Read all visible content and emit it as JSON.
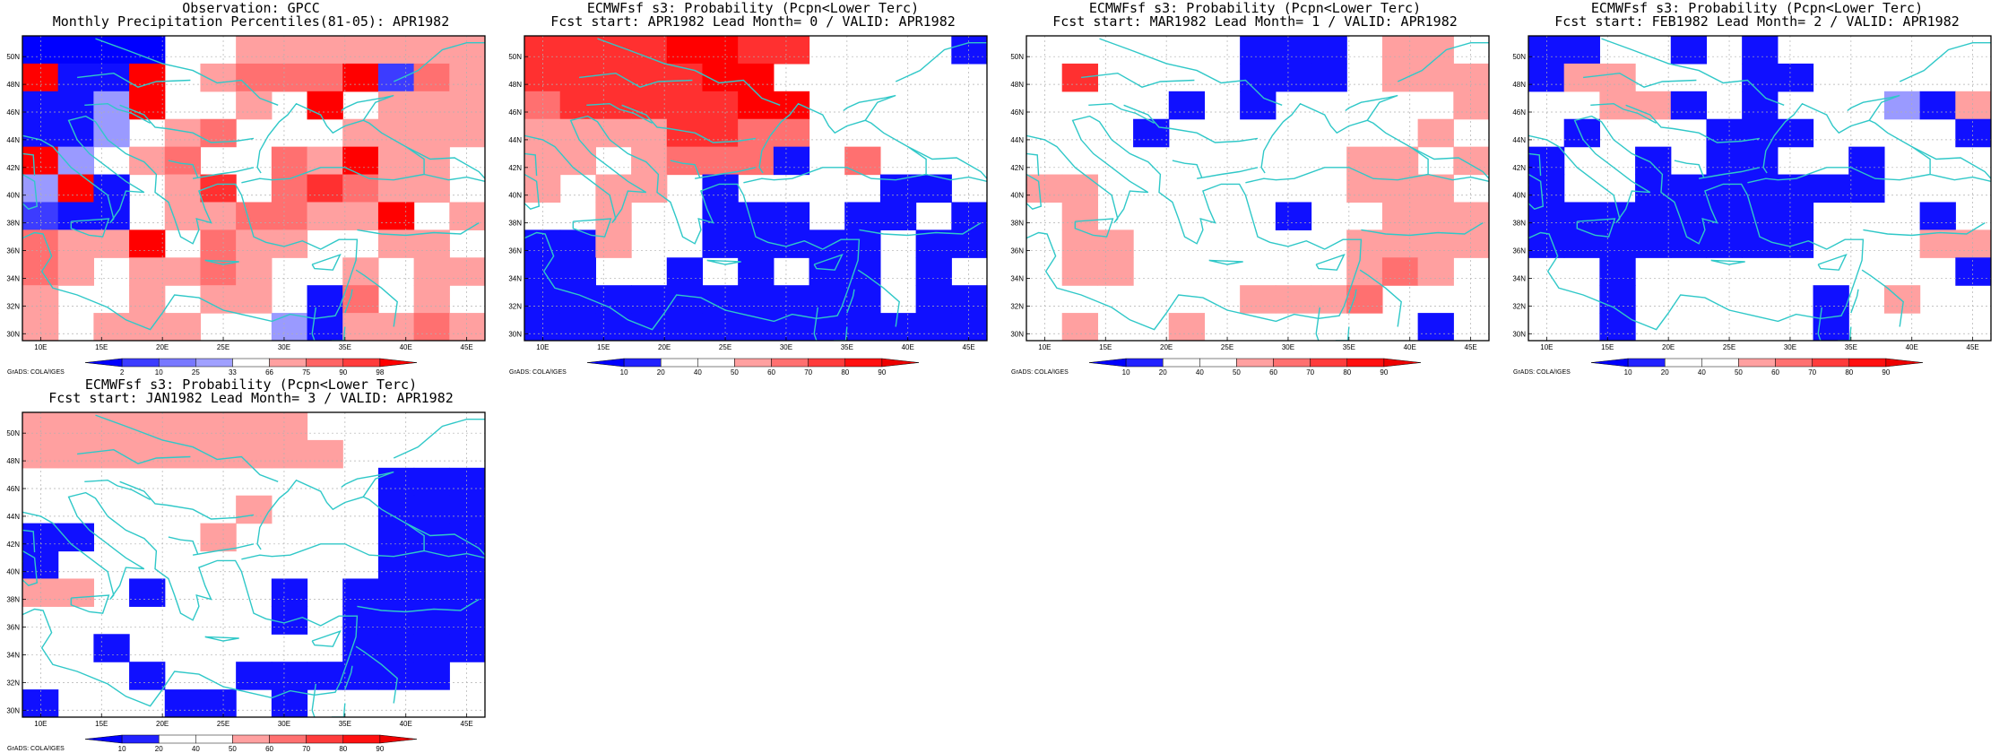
{
  "panels": [
    {
      "title1": "Observation: GPCC",
      "title2": "Monthly Precipitation Percentiles(81-05): APR1982",
      "legend_key": "obs",
      "credit": "GrADS: COLA/IGES",
      "grid_rows": [
        "2222..6666666",
        "9aa9.67779576",
        "aab9..6.9.666",
        "aab.67...6666",
        "9b.67..76966.",
        "b9a.68.78766.",
        "5aa.6677669.6",
        "7669.766..66.",
        "76.6676..6.66",
        "6..6.66.a7.6.",
        "6.666..ba6676"
      ]
    },
    {
      "title1": "ECMWFsf s3: Probability (Pcpn<Lower Terc)",
      "title2": "Fcst start: APR1982  Lead Month= 0 / VALID: APR1982",
      "legend_key": "prob",
      "credit": "GrADS: COLA/IGES",
      "grid_rows": [
        "88889988....a",
        "8888899.....",
        "78888899.....",
        "66668877......",
        "66.6777a.7.",
        "6.66.a....aa",
        "..6..aaa.aa.a",
        "aa6..aaaaa.aa",
        "aa..a.a.aa.a",
        "aaaaaaaaaa.aa",
        "aaaaaaaaaaaaa"
      ]
    },
    {
      "title1": "ECMWFsf s3: Probability (Pcpn<Lower Terc)",
      "title2": "Fcst start: MAR1982  Lead Month= 1 / VALID: APR1982",
      "legend_key": "prob",
      "credit": "GrADS: COLA/IGES",
      "grid_rows": [
        "......aaa.66.a",
        ".8....aaa.666",
        "....a.a.....6",
        "...a.......6.",
        ".........66.6",
        "66.......666.",
        ".6.....a..666",
        ".66......6666",
        ".66......676.",
        "......6667...",
        ".6..6......a."
      ]
    },
    {
      "title1": "ECMWFsf s3: Probability (Pcpn<Lower Terc)",
      "title2": "Fcst start: FEB1982  Lead Month= 2 / VALID: APR1982",
      "legend_key": "prob",
      "credit": "GrADS: COLA/IGES",
      "grid_rows": [
        "aa..a.a......6",
        "a66...aa......",
        "..66a.a...ba6.",
        ".a...aaa....a.",
        "a..a.aa..a....",
        "a..aaaaaaa...",
        "aaaaaaaa...a.a",
        "aaaaaaaa...66a",
        "..a.........a",
        "..a.....a.6..",
        "..a.....a...."
      ]
    },
    {
      "title1": "ECMWFsf s3: Probability (Pcpn<Lower Terc)",
      "title2": "Fcst start: JAN1982  Lead Month= 3 / VALID: APR1982",
      "legend_key": "prob",
      "credit": "GrADS: COLA/IGES",
      "grid_rows": [
        "66666666......",
        "666666666......",
        "..........aaa.",
        "......6...aaaa.",
        "aa...6....aaa.a",
        "a.........aaaaa",
        "66.a...a.aaaaa",
        ".......a.aaaaa",
        "..a......aaaaa",
        "...a..aaaaaa.",
        "a...aa.a.....6"
      ]
    }
  ],
  "legends": {
    "obs": {
      "labels": [
        "2",
        "10",
        "25",
        "33",
        "66",
        "75",
        "90",
        "98"
      ],
      "colors": [
        "#0000ff",
        "#3c3cff",
        "#7878ff",
        "#a0a0ff",
        "#ffffff",
        "#ffa0a0",
        "#ff6464",
        "#ff3c3c",
        "#ff0000"
      ]
    },
    "prob": {
      "labels": [
        "10",
        "20",
        "40",
        "50",
        "60",
        "70",
        "80",
        "90"
      ],
      "colors": [
        "#0000ff",
        "#2222ff",
        "#ffffff",
        "#ffffff",
        "#ffa0a0",
        "#ff7070",
        "#ff3c3c",
        "#ff1010",
        "#ee0000"
      ]
    }
  },
  "cell_colors": {
    "2": "#0000ff",
    "5": "#3c3cff",
    "6": "#ffa0a0",
    "7": "#ff7070",
    "8": "#ff3030",
    "9": "#ff0000",
    "a": "#1010ff",
    "b": "#9a9aff"
  },
  "axes": {
    "lon_labels": [
      "10E",
      "15E",
      "20E",
      "25E",
      "30E",
      "35E",
      "40E",
      "45E"
    ],
    "lat_labels": [
      "50N",
      "48N",
      "46N",
      "44N",
      "42N",
      "40N",
      "38N",
      "36N",
      "34N",
      "32N",
      "30N"
    ]
  },
  "colors": {
    "coast": "#30c8c8",
    "grid": "#b0b0b0"
  }
}
